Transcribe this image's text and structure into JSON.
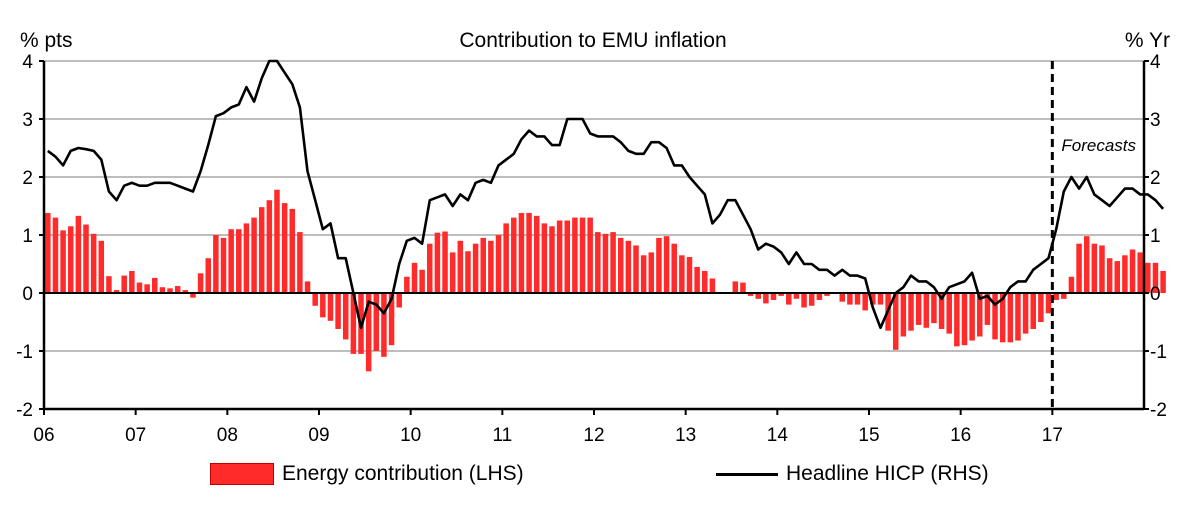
{
  "chart_data": {
    "type": "bar+line",
    "title": "Contribution to EMU inflation",
    "ylabel_left": "% pts",
    "ylabel_right": "% Yr",
    "ylim_left": [
      -2,
      4
    ],
    "ylim_right": [
      -2,
      4
    ],
    "yticks": [
      "-2",
      "-1",
      "0",
      "1",
      "2",
      "3",
      "4"
    ],
    "xlim": [
      2006,
      2018
    ],
    "x_ticks": [
      "06",
      "07",
      "08",
      "09",
      "10",
      "11",
      "12",
      "13",
      "14",
      "15",
      "16",
      "17"
    ],
    "grid": "horizontal",
    "annotation": {
      "text": "Forecasts",
      "divider_at": 2017
    },
    "series": [
      {
        "name": "Energy contribution (LHS)",
        "kind": "bar",
        "color": "#ff2a2a",
        "start": 2006.0,
        "step_months": 1,
        "values": [
          1.38,
          1.3,
          1.08,
          1.15,
          1.33,
          1.18,
          1.02,
          0.9,
          0.29,
          0.05,
          0.3,
          0.38,
          0.18,
          0.15,
          0.26,
          0.1,
          0.08,
          0.12,
          0.05,
          -0.08,
          0.34,
          0.6,
          1.0,
          0.95,
          1.1,
          1.1,
          1.2,
          1.3,
          1.48,
          1.6,
          1.78,
          1.55,
          1.45,
          1.05,
          0.2,
          -0.22,
          -0.42,
          -0.48,
          -0.62,
          -0.8,
          -1.05,
          -1.05,
          -1.35,
          -1.0,
          -1.1,
          -0.9,
          -0.25,
          0.28,
          0.52,
          0.4,
          0.85,
          1.04,
          1.06,
          0.7,
          0.9,
          0.72,
          0.85,
          0.95,
          0.9,
          1.0,
          1.2,
          1.3,
          1.38,
          1.38,
          1.33,
          1.2,
          1.15,
          1.25,
          1.25,
          1.3,
          1.3,
          1.3,
          1.05,
          1.02,
          1.05,
          0.95,
          0.9,
          0.82,
          0.65,
          0.7,
          0.95,
          0.98,
          0.85,
          0.65,
          0.62,
          0.45,
          0.38,
          0.25,
          -0.01,
          0.0,
          0.2,
          0.18,
          -0.05,
          -0.1,
          -0.18,
          -0.12,
          -0.05,
          -0.2,
          -0.1,
          -0.25,
          -0.22,
          -0.12,
          -0.05,
          0.0,
          -0.15,
          -0.2,
          -0.2,
          -0.3,
          -0.2,
          -0.2,
          -0.65,
          -0.98,
          -0.75,
          -0.65,
          -0.55,
          -0.6,
          -0.52,
          -0.62,
          -0.7,
          -0.92,
          -0.9,
          -0.82,
          -0.75,
          -0.55,
          -0.8,
          -0.85,
          -0.85,
          -0.82,
          -0.7,
          -0.62,
          -0.5,
          -0.35,
          -0.12,
          -0.1,
          0.28,
          0.85,
          0.98,
          0.85,
          0.82,
          0.6,
          0.55,
          0.65,
          0.75,
          0.7,
          0.52,
          0.52,
          0.38
        ]
      },
      {
        "name": "Headline HICP (RHS)",
        "kind": "line",
        "color": "#000000",
        "start": 2006.0,
        "step_months": 1,
        "values": [
          2.45,
          2.35,
          2.2,
          2.45,
          2.5,
          2.48,
          2.45,
          2.3,
          1.75,
          1.6,
          1.85,
          1.9,
          1.85,
          1.85,
          1.9,
          1.9,
          1.9,
          1.85,
          1.8,
          1.75,
          2.1,
          2.55,
          3.05,
          3.1,
          3.2,
          3.25,
          3.55,
          3.3,
          3.7,
          4.0,
          4.0,
          3.8,
          3.6,
          3.2,
          2.1,
          1.6,
          1.1,
          1.2,
          0.6,
          0.6,
          0.0,
          -0.6,
          -0.15,
          -0.2,
          -0.35,
          -0.1,
          0.5,
          0.9,
          0.95,
          0.85,
          1.6,
          1.65,
          1.7,
          1.5,
          1.7,
          1.6,
          1.9,
          1.95,
          1.9,
          2.2,
          2.3,
          2.4,
          2.65,
          2.8,
          2.7,
          2.7,
          2.55,
          2.55,
          3.0,
          3.0,
          3.0,
          2.75,
          2.7,
          2.7,
          2.7,
          2.6,
          2.45,
          2.4,
          2.4,
          2.6,
          2.6,
          2.5,
          2.2,
          2.2,
          2.0,
          1.85,
          1.7,
          1.2,
          1.35,
          1.6,
          1.6,
          1.35,
          1.1,
          0.75,
          0.85,
          0.8,
          0.7,
          0.5,
          0.7,
          0.5,
          0.5,
          0.4,
          0.4,
          0.3,
          0.4,
          0.3,
          0.3,
          0.25,
          -0.25,
          -0.6,
          -0.3,
          0.0,
          0.1,
          0.3,
          0.2,
          0.2,
          0.1,
          -0.1,
          0.1,
          0.15,
          0.2,
          0.35,
          -0.1,
          -0.05,
          -0.2,
          -0.1,
          0.1,
          0.2,
          0.2,
          0.4,
          0.5,
          0.6,
          1.1,
          1.75,
          2.0,
          1.8,
          2.0,
          1.7,
          1.6,
          1.5,
          1.65,
          1.8,
          1.8,
          1.7,
          1.7,
          1.6,
          1.45
        ]
      }
    ]
  }
}
